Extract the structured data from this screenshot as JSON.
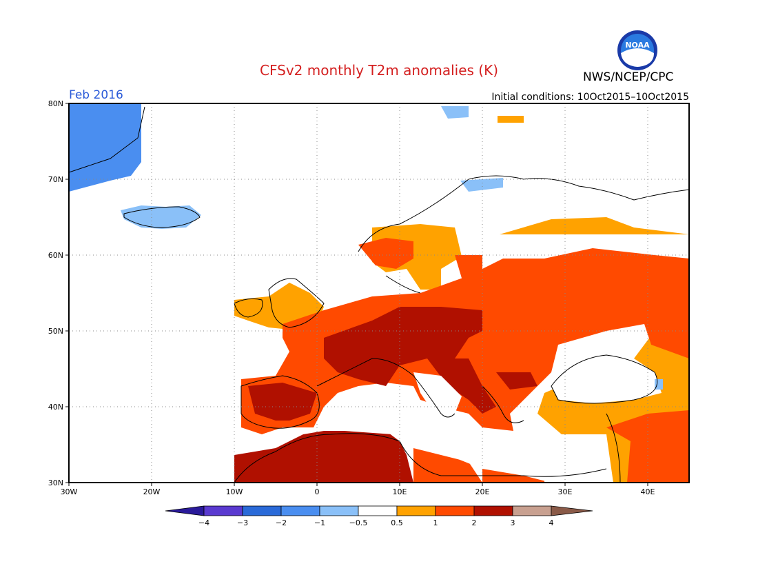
{
  "title": "CFSv2 monthly T2m anomalies (K)",
  "agency": "NWS/NCEP/CPC",
  "logo_text": "NOAA",
  "month": "Feb 2016",
  "initial_conditions": "Initial conditions: 10Oct2015–10Oct2015",
  "map": {
    "lon_range": [
      -30,
      45
    ],
    "lat_range": [
      30,
      80
    ],
    "lon_ticks": [
      "30W",
      "20W",
      "10W",
      "0",
      "10E",
      "20E",
      "30E",
      "40E"
    ],
    "lat_ticks": [
      "80N",
      "70N",
      "60N",
      "50N",
      "40N",
      "30N"
    ]
  },
  "legend": {
    "labels": [
      "−4",
      "−3",
      "−2",
      "−1",
      "−0.5",
      "0.5",
      "1",
      "2",
      "3",
      "4"
    ],
    "colors": [
      "#2a1a9a",
      "#5a3ad0",
      "#2a6ad8",
      "#4a8ef0",
      "#8ac0f8",
      "#ffffff",
      "#ffa200",
      "#ff4a00",
      "#b01000",
      "#c8a090",
      "#8a5a48"
    ]
  },
  "colors": {
    "warm1": "#ffa200",
    "warm2": "#ff4a00",
    "warm3": "#b01000",
    "cold1": "#8ac0f8",
    "cold2": "#4a8ef0"
  }
}
